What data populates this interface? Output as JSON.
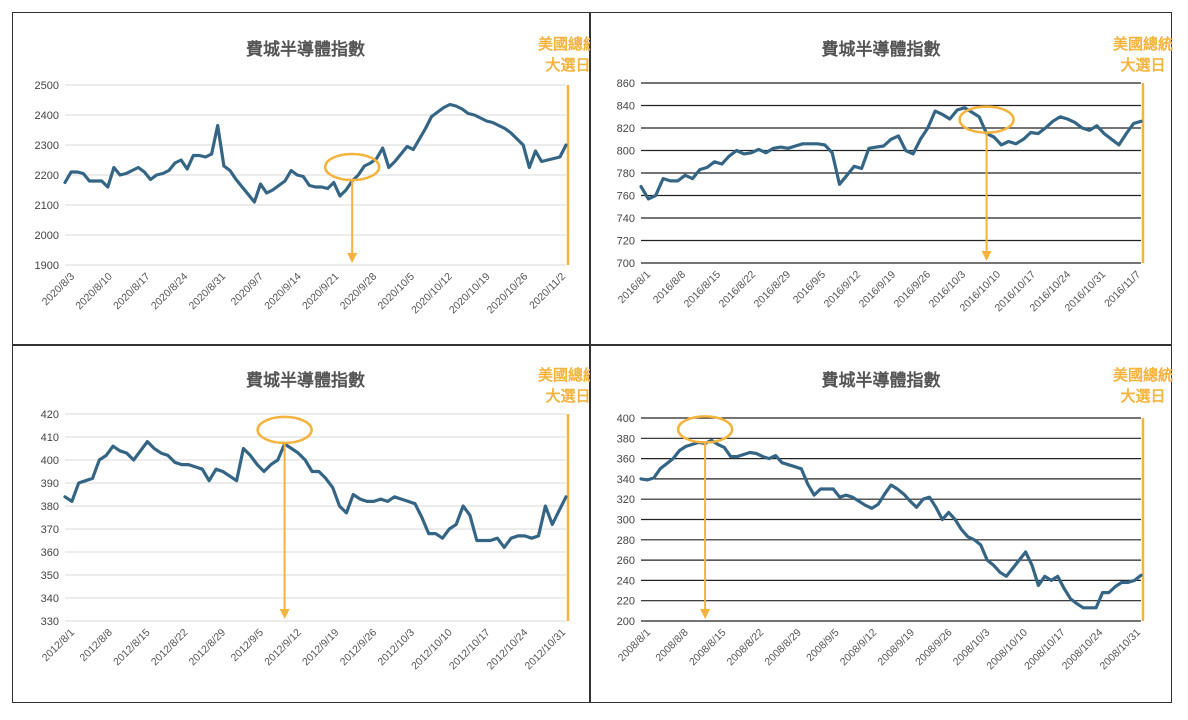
{
  "colors": {
    "line": "#356585",
    "accent": "#f3b33d",
    "grid_light": "#d9d9d9",
    "grid_dark": "#222222"
  },
  "chart_data": [
    {
      "type": "line",
      "title": "費城半導體指數",
      "annotation": [
        "美國總統",
        "大選日"
      ],
      "ylim": [
        1900,
        2500
      ],
      "yticks": [
        1900,
        2000,
        2100,
        2200,
        2300,
        2400,
        2500
      ],
      "grid_style": "light",
      "x_index_max": 65,
      "xtick_labels": [
        "2020/8/3",
        "2020/8/10",
        "2020/8/17",
        "2020/8/24",
        "2020/8/31",
        "2020/9/7",
        "2020/9/14",
        "2020/9/21",
        "2020/9/28",
        "2020/10/5",
        "2020/10/12",
        "2020/10/19",
        "2020/10/26",
        "2020/11/2"
      ],
      "highlight_index": 47,
      "values": [
        2175,
        2210,
        2210,
        2205,
        2180,
        2180,
        2180,
        2160,
        2225,
        2200,
        2205,
        2215,
        2225,
        2210,
        2185,
        2200,
        2205,
        2215,
        2240,
        2250,
        2220,
        2265,
        2265,
        2260,
        2270,
        2365,
        2230,
        2215,
        2185,
        2160,
        2135,
        2110,
        2170,
        2140,
        2150,
        2165,
        2180,
        2215,
        2200,
        2195,
        2165,
        2160,
        2160,
        2155,
        2175,
        2130,
        2150,
        2180,
        2200,
        2230,
        2240,
        2255,
        2290,
        2225,
        2245,
        2270,
        2295,
        2285,
        2320,
        2355,
        2395,
        2410,
        2425,
        2435,
        2430,
        2420,
        2405,
        2400,
        2390,
        2380,
        2375,
        2365,
        2355,
        2340,
        2320,
        2300,
        2225,
        2280,
        2245,
        2250,
        2255,
        2260,
        2300
      ]
    },
    {
      "type": "line",
      "title": "費城半導體指數",
      "annotation": [
        "美國總統",
        "大選日"
      ],
      "ylim": [
        700,
        860
      ],
      "yticks": [
        700,
        720,
        740,
        760,
        780,
        800,
        820,
        840,
        860
      ],
      "grid_style": "dark",
      "x_index_max": 69,
      "xtick_labels": [
        "2016/8/1",
        "2016/8/8",
        "2016/8/15",
        "2016/8/22",
        "2016/8/29",
        "2016/9/5",
        "2016/9/12",
        "2016/9/19",
        "2016/9/26",
        "2016/10/3",
        "2016/10/10",
        "2016/10/17",
        "2016/10/24",
        "2016/10/31",
        "2016/11/7"
      ],
      "highlight_index": 47,
      "values": [
        768,
        757,
        760,
        775,
        773,
        773,
        778,
        775,
        783,
        785,
        790,
        788,
        795,
        800,
        797,
        798,
        801,
        798,
        802,
        803,
        802,
        804,
        806,
        806,
        806,
        805,
        798,
        770,
        778,
        786,
        784,
        802,
        803,
        804,
        810,
        813,
        800,
        797,
        810,
        820,
        835,
        832,
        828,
        836,
        838,
        834,
        830,
        815,
        812,
        805,
        808,
        806,
        810,
        816,
        815,
        820,
        826,
        830,
        828,
        825,
        820,
        818,
        822,
        815,
        810,
        805,
        815,
        824,
        826
      ]
    },
    {
      "type": "line",
      "title": "費城半導體指數",
      "annotation": [
        "美國總統",
        "大選日"
      ],
      "ylim": [
        330,
        420
      ],
      "yticks": [
        330,
        340,
        350,
        360,
        370,
        380,
        390,
        400,
        410,
        420
      ],
      "grid_style": "light",
      "x_index_max": 67,
      "xtick_labels": [
        "2012/8/1",
        "2012/8/8",
        "2012/8/15",
        "2012/8/22",
        "2012/8/29",
        "2012/9/5",
        "2012/9/12",
        "2012/9/19",
        "2012/9/26",
        "2012/10/3",
        "2012/10/10",
        "2012/10/17",
        "2012/10/24",
        "2012/10/31"
      ],
      "highlight_index": 32,
      "values": [
        384,
        382,
        390,
        391,
        392,
        400,
        402,
        406,
        404,
        403,
        400,
        404,
        408,
        405,
        403,
        402,
        399,
        398,
        398,
        397,
        396,
        391,
        396,
        395,
        393,
        391,
        405,
        402,
        398,
        395,
        398,
        400,
        407,
        405,
        403,
        400,
        395,
        395,
        392,
        388,
        380,
        377,
        385,
        383,
        382,
        382,
        383,
        382,
        384,
        383,
        382,
        381,
        375,
        368,
        368,
        366,
        370,
        372,
        380,
        376,
        365,
        365,
        365,
        366,
        362,
        366,
        367,
        367,
        366,
        367,
        380,
        372,
        378,
        384
      ]
    },
    {
      "type": "line",
      "title": "費城半導體指數",
      "annotation": [
        "美國總統",
        "大選日"
      ],
      "ylim": [
        200,
        400
      ],
      "yticks": [
        200,
        220,
        240,
        260,
        280,
        300,
        320,
        340,
        360,
        380,
        400
      ],
      "grid_style": "dark",
      "x_index_max": 67,
      "xtick_labels": [
        "2008/8/1",
        "2008/8/8",
        "2008/8/15",
        "2008/8/22",
        "2008/8/29",
        "2008/9/5",
        "2008/9/12",
        "2008/9/19",
        "2008/9/26",
        "2008/10/3",
        "2008/10/10",
        "2008/10/17",
        "2008/10/24",
        "2008/10/31"
      ],
      "highlight_index": 10,
      "values": [
        340,
        339,
        341,
        350,
        355,
        360,
        368,
        372,
        374,
        376,
        375,
        378,
        374,
        371,
        362,
        362,
        364,
        366,
        365,
        362,
        360,
        363,
        356,
        354,
        352,
        350,
        335,
        324,
        330,
        330,
        330,
        322,
        324,
        322,
        318,
        314,
        311,
        315,
        325,
        334,
        330,
        325,
        318,
        312,
        320,
        322,
        312,
        300,
        307,
        300,
        290,
        283,
        280,
        275,
        260,
        255,
        248,
        244,
        252,
        260,
        268,
        255,
        235,
        244,
        240,
        244,
        232,
        222,
        217,
        213,
        213,
        213,
        228,
        228,
        234,
        238,
        238,
        240,
        245
      ]
    }
  ]
}
